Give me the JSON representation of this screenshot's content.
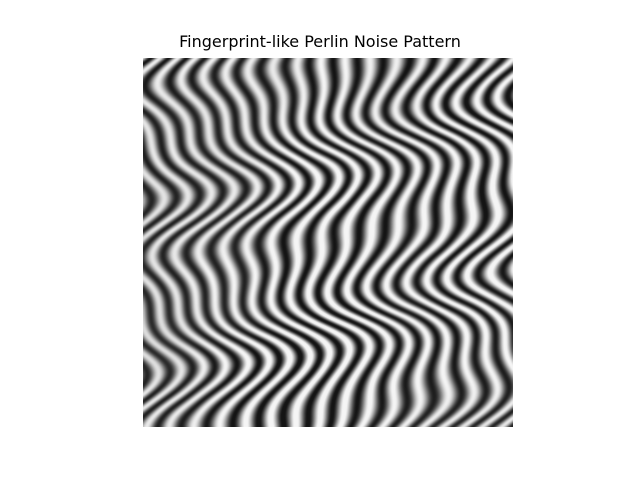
{
  "figure": {
    "title": "Fingerprint-like Perlin Noise Pattern"
  },
  "image": {
    "colormap": "gray",
    "axes_visible": false
  }
}
